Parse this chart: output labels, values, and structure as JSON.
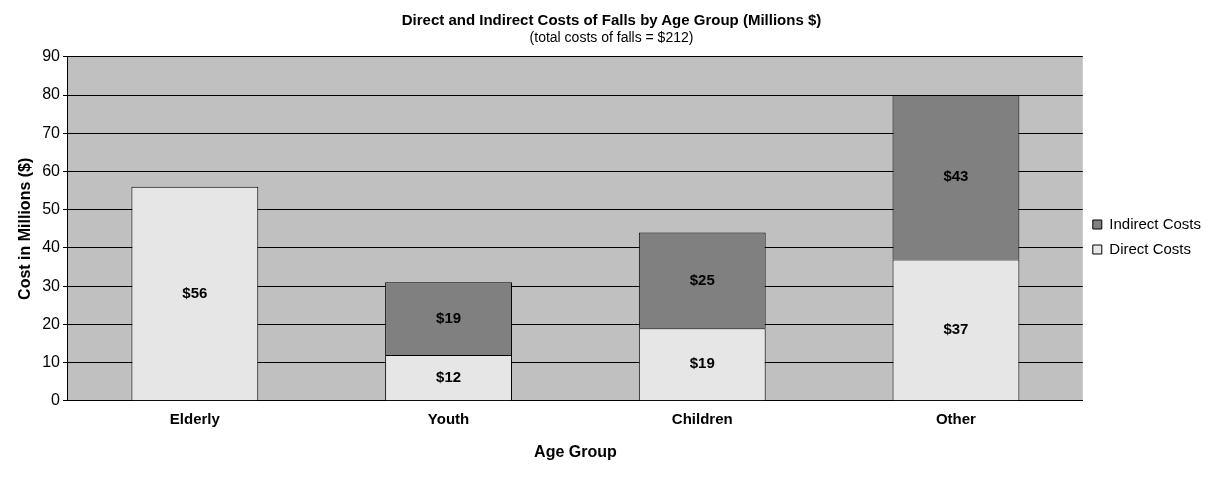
{
  "chart_data": {
    "type": "bar",
    "title": "Direct and Indirect Costs of Falls by Age Group (Millions $)",
    "subtitle": "(total costs of falls = $212)",
    "xlabel": "Age Group",
    "ylabel": "Cost in Millions ($)",
    "categories": [
      "Elderly",
      "Youth",
      "Children",
      "Other"
    ],
    "stacked": true,
    "series": [
      {
        "name": "Direct Costs",
        "color": "#e6e6e6",
        "values": [
          56,
          12,
          19,
          37
        ],
        "value_labels": [
          "$56",
          "$12",
          "$19",
          "$37"
        ]
      },
      {
        "name": "Indirect Costs",
        "color": "#808080",
        "values": [
          null,
          19,
          25,
          43
        ],
        "value_labels": [
          null,
          "$19",
          "$25",
          "$43"
        ]
      }
    ],
    "ylim": [
      0,
      90
    ],
    "yticks": [
      0,
      10,
      20,
      30,
      40,
      50,
      60,
      70,
      80,
      90
    ],
    "grid": "y",
    "legend": "right"
  }
}
